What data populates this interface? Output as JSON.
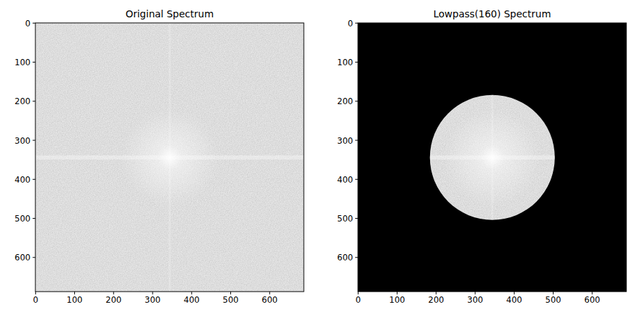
{
  "chart_data": [
    {
      "type": "image",
      "title": "Original Spectrum",
      "xlim": [
        -0.5,
        687.5
      ],
      "ylim": [
        687.5,
        -0.5
      ],
      "xticks": [
        0,
        100,
        200,
        300,
        400,
        500,
        600
      ],
      "yticks": [
        0,
        100,
        200,
        300,
        400,
        500,
        600
      ],
      "center": [
        344,
        344
      ]
    },
    {
      "type": "image",
      "title": "Lowpass(160) Spectrum",
      "xlim": [
        -0.5,
        687.5
      ],
      "ylim": [
        687.5,
        -0.5
      ],
      "xticks": [
        0,
        100,
        200,
        300,
        400,
        500,
        600
      ],
      "yticks": [
        0,
        100,
        200,
        300,
        400,
        500,
        600
      ],
      "center": [
        344,
        344
      ],
      "radius": 160
    }
  ]
}
